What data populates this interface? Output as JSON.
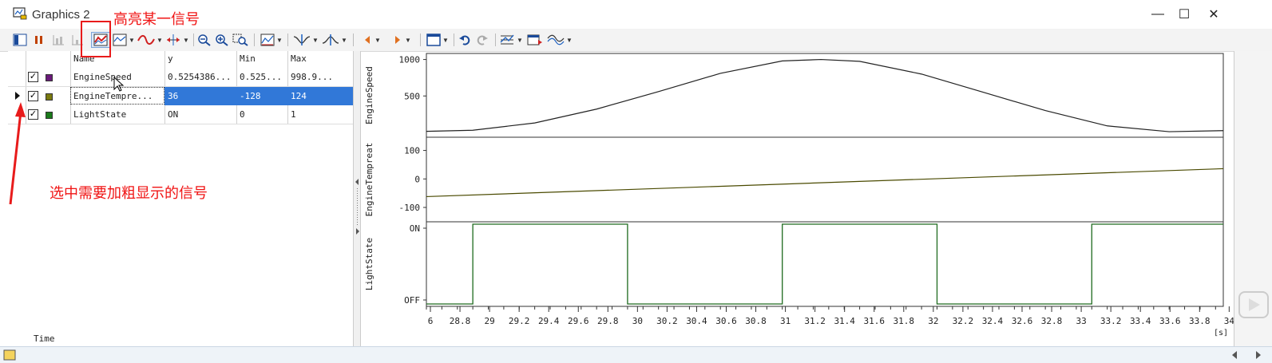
{
  "window": {
    "title": "Graphics 2",
    "minimize_glyph": "—",
    "maximize_glyph": "☐",
    "close_glyph": "✕"
  },
  "toolbar": {
    "icons": [
      "layout-icon",
      "pause-icon",
      "zoom-bar-icon",
      "zoom-bar-2-icon",
      "highlight-signal-icon",
      "signal-style-icon",
      "line-style-icon",
      "fit-icon",
      "zoom-out-icon",
      "zoom-in-icon",
      "zoom-area-icon",
      "chart-icon",
      "cursor-icon",
      "measure-icon",
      "prev-icon",
      "next-icon",
      "window-icon",
      "undo-icon",
      "redo-icon",
      "layout-list-icon",
      "export-icon",
      "signal-compare-icon"
    ]
  },
  "annotations": {
    "highlight_label": "高亮某一信号",
    "select_label": "选中需要加粗显示的信号"
  },
  "signal_table": {
    "columns": [
      "Name",
      "y",
      "Min",
      "Max"
    ],
    "rows": [
      {
        "checked": true,
        "color": "#6a1a7a",
        "name": "EngineSpeed",
        "y": "0.5254386...",
        "min": "0.525...",
        "max": "998.9...",
        "selected": false
      },
      {
        "checked": true,
        "color": "#7a7a10",
        "name": "EngineTempre...",
        "y": "36",
        "min": "-128",
        "max": "124",
        "selected": true
      },
      {
        "checked": true,
        "color": "#1a7a1a",
        "name": "LightState",
        "y": "ON",
        "min": "0",
        "max": "1",
        "selected": false
      }
    ],
    "footer": "Time",
    "selected_color": "#3178d8"
  },
  "chart_data": [
    {
      "type": "line",
      "ylabel": "EngineSpeed",
      "yticks": [
        "1000",
        "500"
      ],
      "ylim": [
        0,
        1050
      ],
      "x": [
        28.7,
        29.0,
        29.4,
        29.8,
        30.2,
        30.6,
        31.0,
        31.25,
        31.5,
        31.9,
        32.3,
        32.7,
        33.1,
        33.5,
        33.85
      ],
      "series": [
        {
          "color": "#222222",
          "values": [
            15,
            30,
            130,
            320,
            560,
            810,
            980,
            1000,
            975,
            800,
            550,
            300,
            90,
            10,
            25
          ]
        }
      ]
    },
    {
      "type": "line",
      "ylabel": "EngineTempreat",
      "yticks": [
        "100",
        "0",
        "-100"
      ],
      "ylim": [
        -128,
        124
      ],
      "x": [
        28.7,
        33.85
      ],
      "series": [
        {
          "color": "#4a4a00",
          "values": [
            -62,
            36
          ]
        }
      ]
    },
    {
      "type": "line",
      "ylabel": "LightState",
      "yticks": [
        "ON",
        "OFF"
      ],
      "ylim": [
        0,
        1
      ],
      "series": [
        {
          "color": "#1e6a1e",
          "steps": [
            [
              28.7,
              0
            ],
            [
              29.0,
              1
            ],
            [
              30.0,
              0
            ],
            [
              31.0,
              1
            ],
            [
              32.0,
              0
            ],
            [
              33.0,
              1
            ],
            [
              33.85,
              1
            ]
          ]
        }
      ]
    }
  ],
  "x_axis": {
    "tick_labels": [
      "6",
      "28.8",
      "29",
      "29.2",
      "29.4",
      "29.6",
      "29.8",
      "30",
      "30.2",
      "30.4",
      "30.6",
      "30.8",
      "31",
      "31.2",
      "31.4",
      "31.6",
      "31.8",
      "32",
      "32.2",
      "32.4",
      "32.6",
      "32.8",
      "33",
      "33.2",
      "33.4",
      "33.6",
      "33.8",
      "34"
    ],
    "unit": "[s]",
    "xlim": [
      28.7,
      33.85
    ]
  }
}
